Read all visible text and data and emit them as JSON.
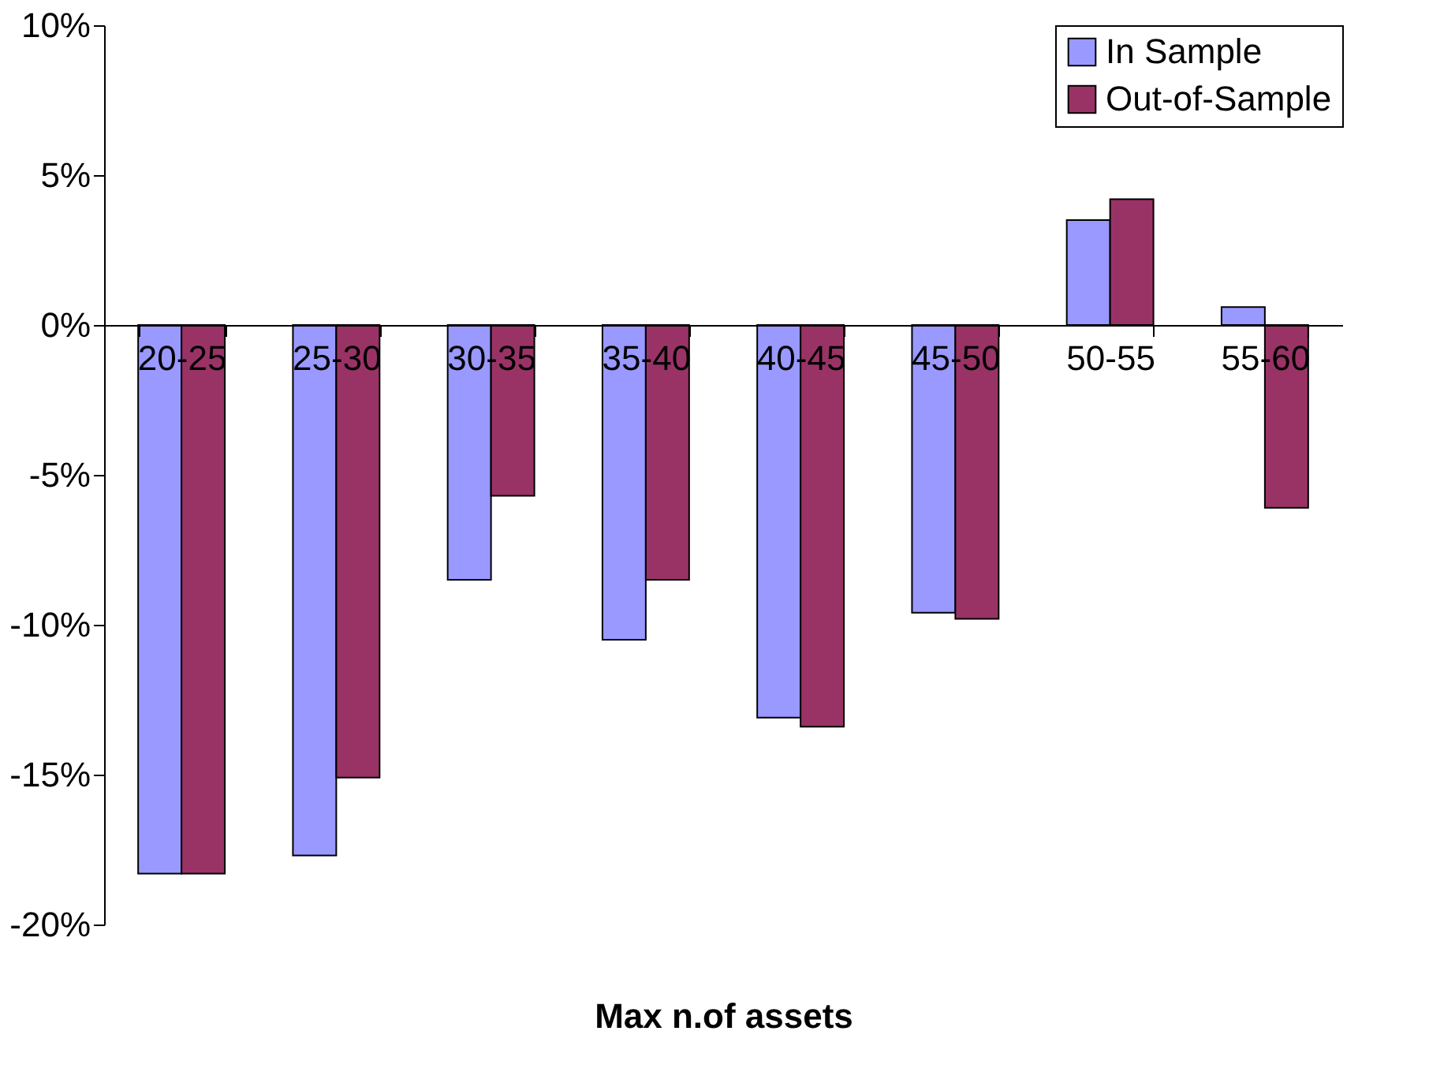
{
  "chart_data": {
    "type": "bar",
    "xlabel": "Max n.of assets",
    "categories": [
      "20-25",
      "25-30",
      "30-35",
      "35-40",
      "40-45",
      "45-50",
      "50-55",
      "55-60"
    ],
    "series": [
      {
        "name": "In Sample",
        "color": "#9999ff",
        "values": [
          -18.3,
          -17.7,
          -8.5,
          -10.5,
          -13.1,
          -9.6,
          3.5,
          0.6
        ]
      },
      {
        "name": "Out-of-Sample",
        "color": "#993366",
        "values": [
          -18.3,
          -15.1,
          -5.7,
          -8.5,
          -13.4,
          -9.8,
          4.2,
          -6.1
        ]
      }
    ],
    "ylim": [
      -20,
      10
    ],
    "yticks": [
      {
        "value": -20,
        "label": "-20%"
      },
      {
        "value": -15,
        "label": "-15%"
      },
      {
        "value": -10,
        "label": "-10%"
      },
      {
        "value": -5,
        "label": "-5%"
      },
      {
        "value": 0,
        "label": "0%"
      },
      {
        "value": 5,
        "label": "5%"
      },
      {
        "value": 10,
        "label": "10%"
      }
    ],
    "grid": false,
    "legend": "top right"
  }
}
